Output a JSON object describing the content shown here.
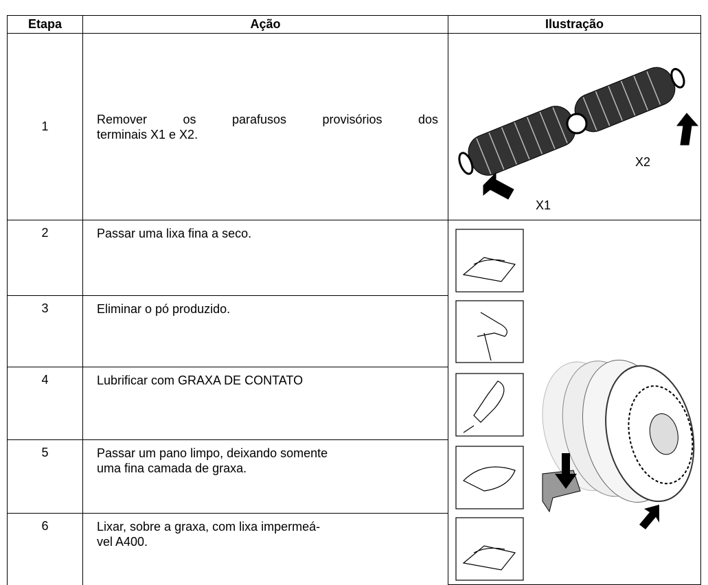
{
  "table": {
    "header": [
      "Etapa",
      "Ação",
      "Ilustração"
    ],
    "rows": [
      {
        "step": "1",
        "action": [
          "Remover os parafusos provisórios dos",
          "terminais X1 e X2."
        ]
      },
      {
        "step": "2",
        "action": [
          "Passar uma lixa fina a seco."
        ]
      },
      {
        "step": "3",
        "action": [
          "Eliminar o pó produzido."
        ]
      },
      {
        "step": "4",
        "action": [
          "Lubrificar com GRAXA DE CONTATO"
        ]
      },
      {
        "step": "5",
        "action": [
          "Passar um pano limpo, deixando somente",
          "uma fina camada de graxa."
        ]
      },
      {
        "step": "6",
        "action": [
          "Lixar, sobre a graxa, com lixa impermeá-",
          "vel A400."
        ]
      }
    ]
  },
  "illustration_labels": {
    "x1": "X1",
    "x2": "X2"
  }
}
